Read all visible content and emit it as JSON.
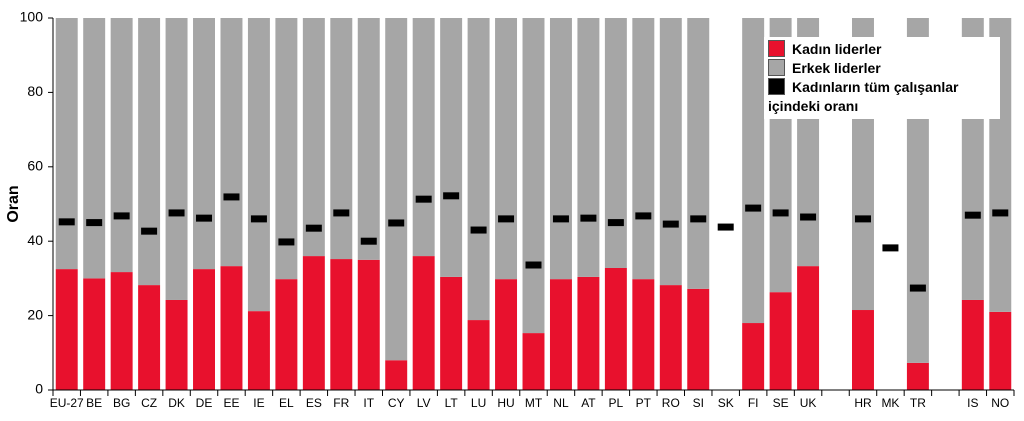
{
  "chart_data": {
    "type": "bar",
    "stacked": true,
    "y_label": "Oran",
    "categories": [
      "EU-27",
      "BE",
      "BG",
      "CZ",
      "DK",
      "DE",
      "EE",
      "IE",
      "EL",
      "ES",
      "FR",
      "IT",
      "CY",
      "LV",
      "LT",
      "LU",
      "HU",
      "MT",
      "NL",
      "AT",
      "PL",
      "PT",
      "RO",
      "SI",
      "SK",
      "FI",
      "SE",
      "UK",
      null,
      "HR",
      "MK",
      "TR",
      null,
      "IS",
      "NO"
    ],
    "series": [
      {
        "name": "Kadın liderler",
        "color": "#e8112d",
        "kind": "bar",
        "values": [
          32.5,
          30,
          31.7,
          28.2,
          24.2,
          32.5,
          33.3,
          21.2,
          29.8,
          36,
          35.2,
          35,
          8,
          36,
          30.4,
          18.8,
          29.8,
          15.3,
          29.8,
          30.4,
          32.8,
          29.8,
          28.2,
          27.2,
          null,
          18,
          26.3,
          33.3,
          null,
          21.5,
          null,
          7.3,
          null,
          24.2,
          21
        ]
      },
      {
        "name": "Erkek liderler",
        "color": "#a6a6a6",
        "kind": "bar",
        "values": [
          67.5,
          70,
          68.3,
          71.8,
          75.8,
          67.5,
          66.7,
          78.8,
          70.2,
          64,
          64.8,
          65,
          92,
          64,
          69.6,
          81.2,
          70.2,
          84.7,
          70.2,
          69.6,
          67.2,
          70.2,
          71.8,
          72.8,
          null,
          82,
          73.7,
          66.7,
          null,
          78.5,
          null,
          92.7,
          null,
          75.8,
          79
        ]
      },
      {
        "name": "Kadınların tüm çalışanlar içindeki oranı",
        "color": "#000000",
        "kind": "marker",
        "values": [
          45.2,
          45,
          46.8,
          42.7,
          47.6,
          46.2,
          51.9,
          46,
          39.8,
          43.5,
          47.6,
          40,
          44.9,
          51.3,
          52.2,
          43,
          46,
          33.6,
          46,
          46.2,
          45,
          46.8,
          44.6,
          46,
          43.8,
          48.9,
          47.6,
          46.5,
          null,
          46,
          38.2,
          27.4,
          null,
          47,
          47.6
        ]
      }
    ],
    "ylim": [
      0,
      100
    ],
    "yticks": [
      0,
      20,
      40,
      60,
      80,
      100
    ],
    "grid": false,
    "legend": "top-right"
  }
}
